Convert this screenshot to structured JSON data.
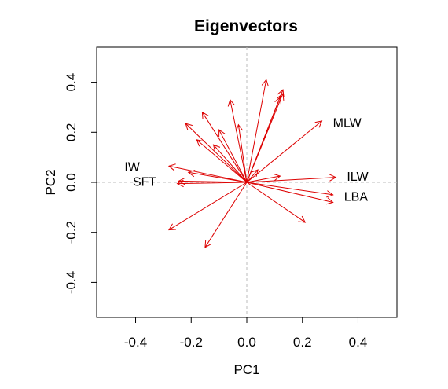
{
  "chart_data": {
    "type": "scatter",
    "title": "Eigenvectors",
    "xlabel": "PC1",
    "ylabel": "PC2",
    "xlim": [
      -0.54,
      0.54
    ],
    "ylim": [
      -0.54,
      0.54
    ],
    "xticks": [
      -0.4,
      -0.2,
      0.0,
      0.2,
      0.4
    ],
    "yticks": [
      -0.4,
      -0.2,
      0.0,
      0.2,
      0.4
    ],
    "tick_labels_x": [
      "-0.4",
      "-0.2",
      "0.0",
      "0.2",
      "0.4"
    ],
    "tick_labels_y": [
      "-0.4",
      "-0.2",
      "0.0",
      "0.2",
      "0.4"
    ],
    "grid": false,
    "reference_lines": {
      "x": 0,
      "y": 0,
      "style": "dashed",
      "color": "#bbbbbb"
    },
    "arrow_color": "#dd0000",
    "origin": [
      0,
      0
    ],
    "vectors": [
      {
        "x": 0.27,
        "y": 0.245
      },
      {
        "x": 0.13,
        "y": 0.37
      },
      {
        "x": 0.13,
        "y": 0.355
      },
      {
        "x": 0.07,
        "y": 0.41
      },
      {
        "x": 0.12,
        "y": 0.34
      },
      {
        "x": -0.06,
        "y": 0.33
      },
      {
        "x": -0.16,
        "y": 0.28
      },
      {
        "x": -0.22,
        "y": 0.235
      },
      {
        "x": -0.03,
        "y": 0.23
      },
      {
        "x": -0.1,
        "y": 0.21
      },
      {
        "x": -0.18,
        "y": 0.17
      },
      {
        "x": -0.12,
        "y": 0.15
      },
      {
        "x": -0.28,
        "y": 0.065
      },
      {
        "x": -0.21,
        "y": 0.04
      },
      {
        "x": -0.245,
        "y": 0.005
      },
      {
        "x": -0.25,
        "y": -0.005
      },
      {
        "x": 0.04,
        "y": 0.05
      },
      {
        "x": 0.12,
        "y": 0.025
      },
      {
        "x": 0.32,
        "y": 0.02
      },
      {
        "x": 0.31,
        "y": -0.05
      },
      {
        "x": 0.31,
        "y": -0.08
      },
      {
        "x": 0.21,
        "y": -0.16
      },
      {
        "x": -0.28,
        "y": -0.19
      },
      {
        "x": -0.15,
        "y": -0.26
      }
    ],
    "labels": [
      {
        "text": "MLW",
        "x": 0.31,
        "y": 0.24
      },
      {
        "text": "IW",
        "x": -0.44,
        "y": 0.065
      },
      {
        "text": "SFT",
        "x": -0.41,
        "y": 0.005
      },
      {
        "text": "ILW",
        "x": 0.36,
        "y": 0.025
      },
      {
        "text": "LBA",
        "x": 0.35,
        "y": -0.055
      }
    ]
  }
}
